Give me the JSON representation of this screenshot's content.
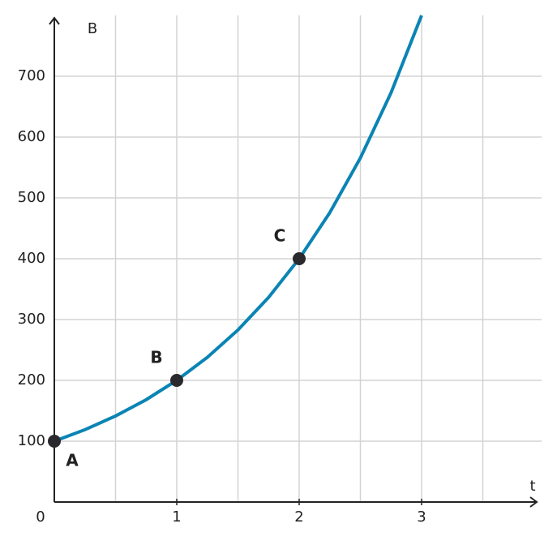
{
  "chart_data": {
    "type": "line",
    "x_label": "t",
    "y_label": "B",
    "xlim": [
      0,
      4
    ],
    "ylim": [
      0,
      800
    ],
    "xticks": [
      0,
      1,
      2,
      3
    ],
    "x_gridlines": [
      0.5,
      1,
      1.5,
      2,
      2.5,
      3,
      3.5
    ],
    "yticks": [
      100,
      200,
      300,
      400,
      500,
      600,
      700
    ],
    "grid": true,
    "series": [
      {
        "color": "#0a84b4",
        "x": [
          0,
          0.25,
          0.5,
          0.75,
          1,
          1.25,
          1.5,
          1.75,
          2,
          2.25,
          2.5,
          2.75,
          3
        ],
        "values": [
          100,
          118.92,
          141.42,
          168.18,
          200,
          237.84,
          282.84,
          336.36,
          400,
          475.68,
          565.69,
          672.7,
          800
        ]
      }
    ],
    "points": {
      "color": "#2a2a2e",
      "labels": [
        "A",
        "B",
        "C"
      ],
      "x": [
        0,
        1,
        2
      ],
      "values": [
        100,
        200,
        400
      ]
    }
  }
}
